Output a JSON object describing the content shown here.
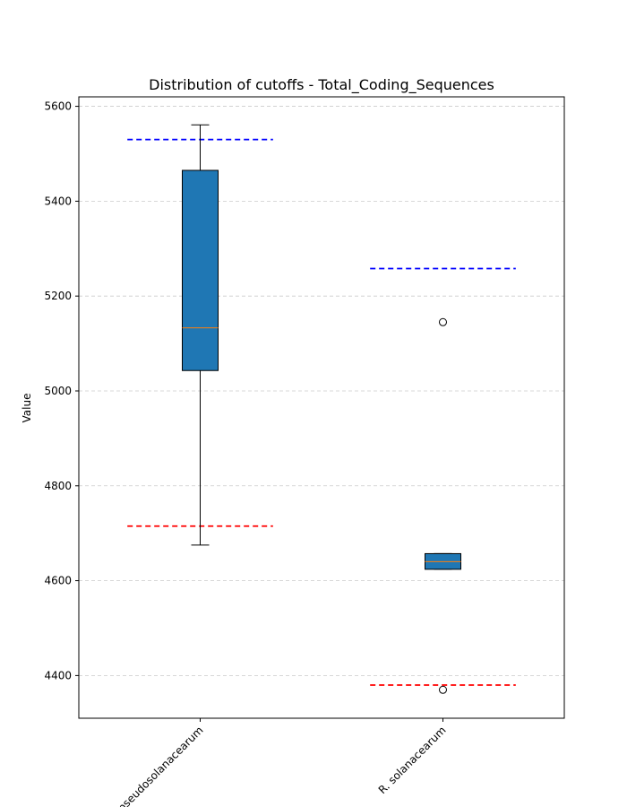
{
  "chart_data": {
    "type": "box",
    "title": "Distribution of cutoffs - Total_Coding_Sequences",
    "xlabel": "",
    "ylabel": "Value",
    "ylim": [
      4310,
      5620
    ],
    "yticks": [
      4400,
      4600,
      4800,
      5000,
      5200,
      5400,
      5600
    ],
    "grid": "y-dashed",
    "categories": [
      "R. pseudosolanacearum",
      "R. solanacearum"
    ],
    "boxes": [
      {
        "category": "R. pseudosolanacearum",
        "whisker_low": 4675,
        "q1": 5043,
        "median": 5133,
        "q3": 5465,
        "whisker_high": 5561,
        "outliers": [],
        "upper_cutoff": 5530,
        "lower_cutoff": 4715
      },
      {
        "category": "R. solanacearum",
        "whisker_low": 4624,
        "q1": 4624,
        "median": 4640,
        "q3": 4657,
        "whisker_high": 4657,
        "outliers": [
          5145,
          4370
        ],
        "upper_cutoff": 5258,
        "lower_cutoff": 4380
      }
    ],
    "colors": {
      "box_fill": "#1f77b4",
      "median": "#ff7f0e",
      "upper_cutoff": "#0000ff",
      "lower_cutoff": "#ff0000",
      "grid": "#cccccc"
    }
  }
}
